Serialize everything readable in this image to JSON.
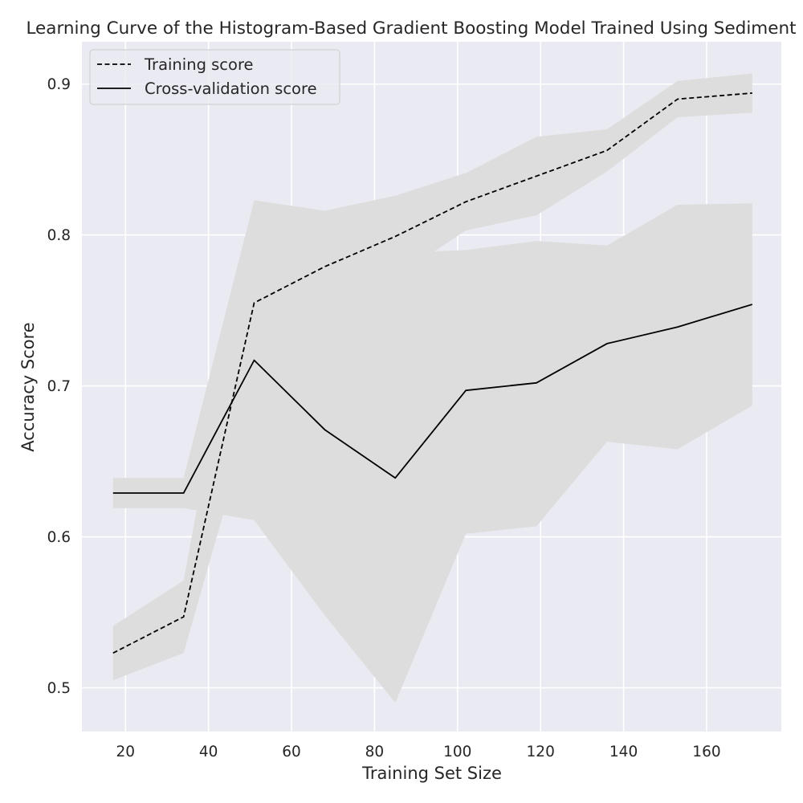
{
  "chart_data": {
    "type": "line",
    "title": "Learning Curve of the Histogram-Based Gradient Boosting Model Trained Using Sediment",
    "xlabel": "Training Set Size",
    "ylabel": "Accuracy Score",
    "xlim": [
      9.5,
      178
    ],
    "ylim": [
      0.471,
      0.928
    ],
    "xticks": [
      20,
      40,
      60,
      80,
      100,
      120,
      140,
      160
    ],
    "yticks": [
      0.5,
      0.6,
      0.7,
      0.8,
      0.9
    ],
    "grid": true,
    "legend_position": "top-left",
    "x": [
      17,
      34,
      51,
      68,
      85,
      102,
      119,
      136,
      153,
      171
    ],
    "series": [
      {
        "name": "Training score",
        "style": "dashed",
        "color": "#000000",
        "values": [
          0.523,
          0.547,
          0.755,
          0.779,
          0.799,
          0.822,
          0.839,
          0.856,
          0.89,
          0.894
        ],
        "band_upper": [
          0.541,
          0.571,
          0.823,
          0.816,
          0.826,
          0.841,
          0.865,
          0.87,
          0.902,
          0.907
        ],
        "band_lower": [
          0.505,
          0.523,
          0.687,
          0.742,
          0.772,
          0.803,
          0.813,
          0.842,
          0.878,
          0.881
        ]
      },
      {
        "name": "Cross-validation score",
        "style": "solid",
        "color": "#000000",
        "values": [
          0.629,
          0.629,
          0.717,
          0.671,
          0.639,
          0.697,
          0.702,
          0.728,
          0.739,
          0.754
        ],
        "band_upper": [
          0.639,
          0.639,
          0.823,
          0.771,
          0.788,
          0.79,
          0.796,
          0.793,
          0.82,
          0.821
        ],
        "band_lower": [
          0.619,
          0.619,
          0.611,
          0.548,
          0.49,
          0.602,
          0.607,
          0.663,
          0.658,
          0.687
        ]
      }
    ],
    "colors": {
      "plot_background": "#eaeaf2",
      "grid": "#ffffff",
      "band_fill": "#dddddd",
      "text": "#262626"
    }
  }
}
